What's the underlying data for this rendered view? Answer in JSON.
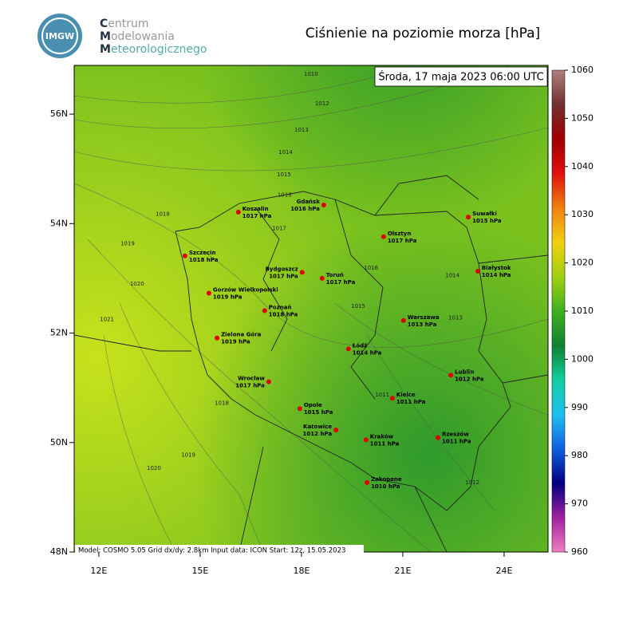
{
  "header": {
    "logo": "IMGW",
    "org_lines": [
      "Centrum",
      "Modelowania",
      "Meteorologicznego"
    ],
    "title": "Ciśnienie na poziomie morza [hPa]"
  },
  "map": {
    "valid_time": "Środa, 17 maja 2023 06:00 UTC",
    "footer": "Model: COSMO 5.05  Grid dx/dy: 2.8km  Input data: ICON  Start: 12z, 15.05.2023",
    "xlim": [
      11.27,
      25.3
    ],
    "ylim": [
      48,
      56.89
    ],
    "xticks": [
      {
        "value": 12,
        "label": "12E"
      },
      {
        "value": 15,
        "label": "15E"
      },
      {
        "value": 18,
        "label": "18E"
      },
      {
        "value": 21,
        "label": "21E"
      },
      {
        "value": 24,
        "label": "24E"
      }
    ],
    "yticks": [
      {
        "value": 48,
        "label": "48N"
      },
      {
        "value": 50,
        "label": "50N"
      },
      {
        "value": 52,
        "label": "52N"
      },
      {
        "value": 54,
        "label": "54N"
      },
      {
        "value": 56,
        "label": "56N"
      }
    ],
    "city_color": "#e00000",
    "cities": [
      {
        "name": "Koszalin",
        "value_label": "1017 hPa",
        "value": 1017,
        "lon": 16.13,
        "lat": 54.21,
        "side": "right"
      },
      {
        "name": "Gdańsk",
        "value_label": "1016 hPa",
        "value": 1016,
        "lon": 18.66,
        "lat": 54.34,
        "side": "left"
      },
      {
        "name": "Suwałki",
        "value_label": "1015 hPa",
        "value": 1015,
        "lon": 22.94,
        "lat": 54.12,
        "side": "right"
      },
      {
        "name": "Olsztyn",
        "value_label": "1017 hPa",
        "value": 1017,
        "lon": 20.43,
        "lat": 53.76,
        "side": "right"
      },
      {
        "name": "Szczecin",
        "value_label": "1018 hPa",
        "value": 1018,
        "lon": 14.55,
        "lat": 53.41,
        "side": "right"
      },
      {
        "name": "Bydgoszcz",
        "value_label": "1017 hPa",
        "value": 1017,
        "lon": 18.02,
        "lat": 53.11,
        "side": "left"
      },
      {
        "name": "Toruń",
        "value_label": "1017 hPa",
        "value": 1017,
        "lon": 18.61,
        "lat": 53.0,
        "side": "right"
      },
      {
        "name": "Białystok",
        "value_label": "1014 hPa",
        "value": 1014,
        "lon": 23.22,
        "lat": 53.13,
        "side": "right"
      },
      {
        "name": "Gorzów Wielkopolski",
        "value_label": "1019 hPa",
        "value": 1019,
        "lon": 15.26,
        "lat": 52.73,
        "side": "right"
      },
      {
        "name": "Poznań",
        "value_label": "1018 hPa",
        "value": 1018,
        "lon": 16.91,
        "lat": 52.41,
        "side": "right"
      },
      {
        "name": "Warszawa",
        "value_label": "1013 hPa",
        "value": 1013,
        "lon": 21.02,
        "lat": 52.23,
        "side": "right"
      },
      {
        "name": "Zielona Góra",
        "value_label": "1019 hPa",
        "value": 1019,
        "lon": 15.5,
        "lat": 51.91,
        "side": "right"
      },
      {
        "name": "Łódź",
        "value_label": "1014 hPa",
        "value": 1014,
        "lon": 19.39,
        "lat": 51.71,
        "side": "right"
      },
      {
        "name": "Lublin",
        "value_label": "1012 hPa",
        "value": 1012,
        "lon": 22.42,
        "lat": 51.23,
        "side": "right"
      },
      {
        "name": "Wrocław",
        "value_label": "1017 hPa",
        "value": 1017,
        "lon": 17.03,
        "lat": 51.11,
        "side": "left"
      },
      {
        "name": "Opole",
        "value_label": "1015 hPa",
        "value": 1015,
        "lon": 17.95,
        "lat": 50.62,
        "side": "right"
      },
      {
        "name": "Kielce",
        "value_label": "1011 hPa",
        "value": 1011,
        "lon": 20.69,
        "lat": 50.81,
        "side": "right"
      },
      {
        "name": "Katowice",
        "value_label": "1012 hPa",
        "value": 1012,
        "lon": 19.02,
        "lat": 50.23,
        "side": "left"
      },
      {
        "name": "Kraków",
        "value_label": "1011 hPa",
        "value": 1011,
        "lon": 19.91,
        "lat": 50.05,
        "side": "right"
      },
      {
        "name": "Rzeszów",
        "value_label": "1011 hPa",
        "value": 1011,
        "lon": 22.04,
        "lat": 50.09,
        "side": "right"
      },
      {
        "name": "Zakopane",
        "value_label": "1010 hPa",
        "value": 1010,
        "lon": 19.94,
        "lat": 49.27,
        "side": "right"
      }
    ],
    "isobar_labels": [
      {
        "value": 1010,
        "lon": 18.28,
        "lat": 56.73
      },
      {
        "value": 1012,
        "lon": 18.61,
        "lat": 56.19
      },
      {
        "value": 1013,
        "lon": 18.0,
        "lat": 55.71
      },
      {
        "value": 1014,
        "lon": 17.53,
        "lat": 55.3
      },
      {
        "value": 1015,
        "lon": 17.48,
        "lat": 54.89
      },
      {
        "value": 1016,
        "lon": 17.5,
        "lat": 54.52
      },
      {
        "value": 1017,
        "lon": 17.34,
        "lat": 53.91
      },
      {
        "value": 1018,
        "lon": 13.89,
        "lat": 54.17
      },
      {
        "value": 1019,
        "lon": 12.85,
        "lat": 53.63
      },
      {
        "value": 1020,
        "lon": 13.13,
        "lat": 52.9
      },
      {
        "value": 1021,
        "lon": 12.24,
        "lat": 52.25
      },
      {
        "value": 1013,
        "lon": 22.56,
        "lat": 52.28
      },
      {
        "value": 1014,
        "lon": 22.47,
        "lat": 53.05
      },
      {
        "value": 1015,
        "lon": 19.68,
        "lat": 52.49
      },
      {
        "value": 1016,
        "lon": 20.06,
        "lat": 53.19
      },
      {
        "value": 1011,
        "lon": 20.39,
        "lat": 50.87
      },
      {
        "value": 1012,
        "lon": 23.06,
        "lat": 49.27
      },
      {
        "value": 1018,
        "lon": 15.64,
        "lat": 50.72
      },
      {
        "value": 1019,
        "lon": 14.65,
        "lat": 49.77
      },
      {
        "value": 1020,
        "lon": 13.63,
        "lat": 49.53
      }
    ]
  },
  "colorbar": {
    "clim": [
      960,
      1060
    ],
    "ticks": [
      960,
      970,
      980,
      990,
      1000,
      1010,
      1020,
      1030,
      1040,
      1050,
      1060
    ],
    "colors": [
      "#f080c0",
      "#a020a0",
      "#000080",
      "#1060e0",
      "#20c0f0",
      "#10d0a0",
      "#108030",
      "#40b020",
      "#a0d010",
      "#f0d010",
      "#f08010",
      "#e01010",
      "#a00000",
      "#703030",
      "#b08080"
    ]
  }
}
